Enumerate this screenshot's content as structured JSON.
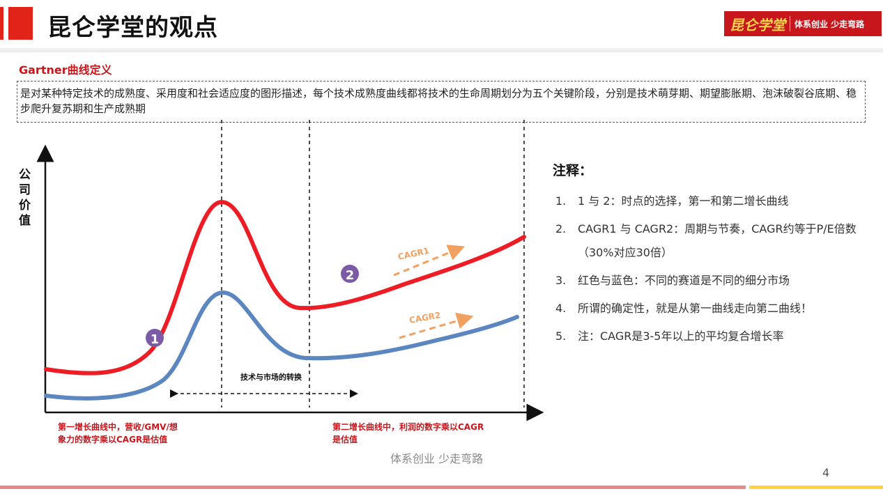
{
  "header": {
    "title": "昆仑学堂的观点",
    "logo_main": "昆仑学堂",
    "logo_sub": "体系创业 少走弯路"
  },
  "definition": {
    "title": "Gartner曲线定义",
    "text": "是对某种特定技术的成熟度、采用度和社会适应度的图形描述，每个技术成熟度曲线都将技术的生命周期划分为五个关键阶段，分别是技术萌芽期、期望膨胀期、泡沫破裂谷底期、稳步爬升复苏期和生产成熟期"
  },
  "diagram": {
    "y_axis_label": "公司价值",
    "marker1": "1",
    "marker2": "2",
    "cagr1": "CAGR1",
    "cagr2": "CAGR2",
    "transition_label": "技术与市场的转换",
    "caption_left": "第一增长曲线中，营收/GMV/想象力的数字乘以CAGR是估值",
    "caption_right": "第二增长曲线中，利润的数字乘以CAGR是估值",
    "colors": {
      "red": "#ee1c25",
      "blue": "#5b86bf",
      "marker": "#7b5aa6",
      "arrow": "#f0a060",
      "caption": "#c8161d"
    }
  },
  "notes": {
    "title": "注释：",
    "items": [
      {
        "num": "1.",
        "text": "1 与 2：时点的选择，第一和第二增长曲线"
      },
      {
        "num": "2.",
        "text": "CAGR1 与 CAGR2：周期与节奏，CAGR约等于P/E倍数（30%对应30倍）"
      },
      {
        "num": "3.",
        "text": "红色与蓝色：不同的赛道是不同的细分市场"
      },
      {
        "num": "4.",
        "text": "所谓的确定性，就是从第一曲线走向第二曲线！"
      },
      {
        "num": "5.",
        "text": "注：CAGR是3-5年以上的平均复合增长率"
      }
    ]
  },
  "footer": {
    "slogan": "体系创业 少走弯路",
    "page_number": "4"
  }
}
